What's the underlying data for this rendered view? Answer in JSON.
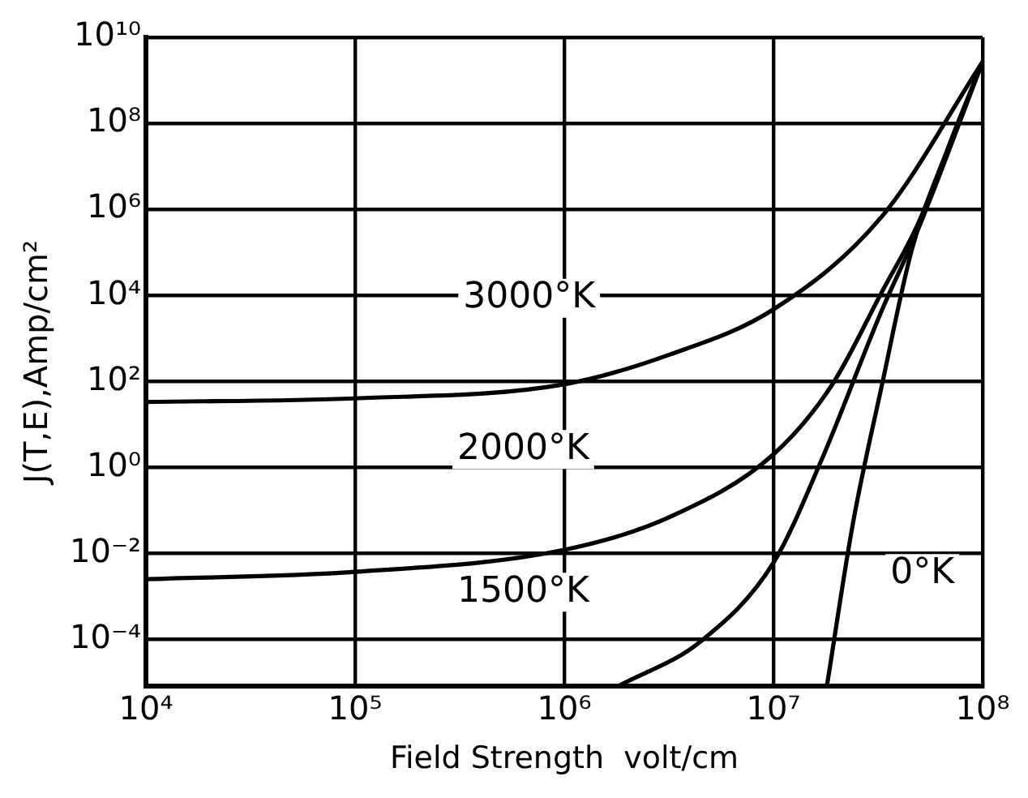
{
  "chart_data": {
    "type": "line",
    "xlabel": "Field Strength  volt/cm",
    "ylabel": "J(T,E),Amp/cm²",
    "log": "xy",
    "grid": true,
    "legend": false,
    "marker": "none",
    "line_style": "solid",
    "xlim": [
      10000.0,
      100000000.0
    ],
    "xticks": [
      {
        "value": 10000.0,
        "label": "10⁴"
      },
      {
        "value": 100000.0,
        "label": "10⁵"
      },
      {
        "value": 1000000.0,
        "label": "10⁶"
      },
      {
        "value": 10000000.0,
        "label": "10⁷"
      },
      {
        "value": 100000000.0,
        "label": "10⁸"
      }
    ],
    "ylim": [
      8e-06,
      10000000000.0
    ],
    "yticks": [
      {
        "value": 0.0001,
        "label": "10⁻⁴"
      },
      {
        "value": 0.01,
        "label": "10⁻²"
      },
      {
        "value": 1,
        "label": "10⁰"
      },
      {
        "value": 100,
        "label": "10²"
      },
      {
        "value": 10000.0,
        "label": "10⁴"
      },
      {
        "value": 1000000.0,
        "label": "10⁶"
      },
      {
        "value": 100000000.0,
        "label": "10⁸"
      },
      {
        "value": 10000000000.0,
        "label": "10¹⁰"
      }
    ],
    "series": [
      {
        "color": "#000000",
        "x": [
          10000.0,
          100000.0,
          1000000.0,
          3200000.0,
          10000000.0,
          33000000.0,
          100000000.0
        ],
        "values": [
          33,
          40,
          85,
          420,
          4700,
          680000.0,
          2700000000.0
        ]
      },
      {
        "color": "#000000",
        "x": [
          10000.0,
          100000.0,
          1000000.0,
          3200000.0,
          10000000.0,
          19000000.0,
          33000000.0,
          49000000.0,
          100000000.0
        ],
        "values": [
          0.0025,
          0.0037,
          0.012,
          0.07,
          2,
          81,
          12000.0,
          450000.0,
          2700000000.0
        ]
      },
      {
        "color": "#000000",
        "x": [
          1800000.0,
          4500000.0,
          10000000.0,
          17000000.0,
          33000000.0,
          49000000.0,
          100000000.0
        ],
        "values": [
          8e-06,
          9e-05,
          0.006,
          1.5,
          4500.0,
          330000.0,
          2700000000.0
        ]
      },
      {
        "color": "#000000",
        "x": [
          18000000.0,
          24000000.0,
          33000000.0,
          46000000.0,
          68000000.0,
          100000000.0
        ],
        "values": [
          8e-06,
          0.05,
          81,
          120000.0,
          25000000.0,
          2700000000.0
        ]
      }
    ],
    "annotations": [
      "3000°K",
      "2000°K",
      "1500°K",
      "0°K"
    ]
  }
}
